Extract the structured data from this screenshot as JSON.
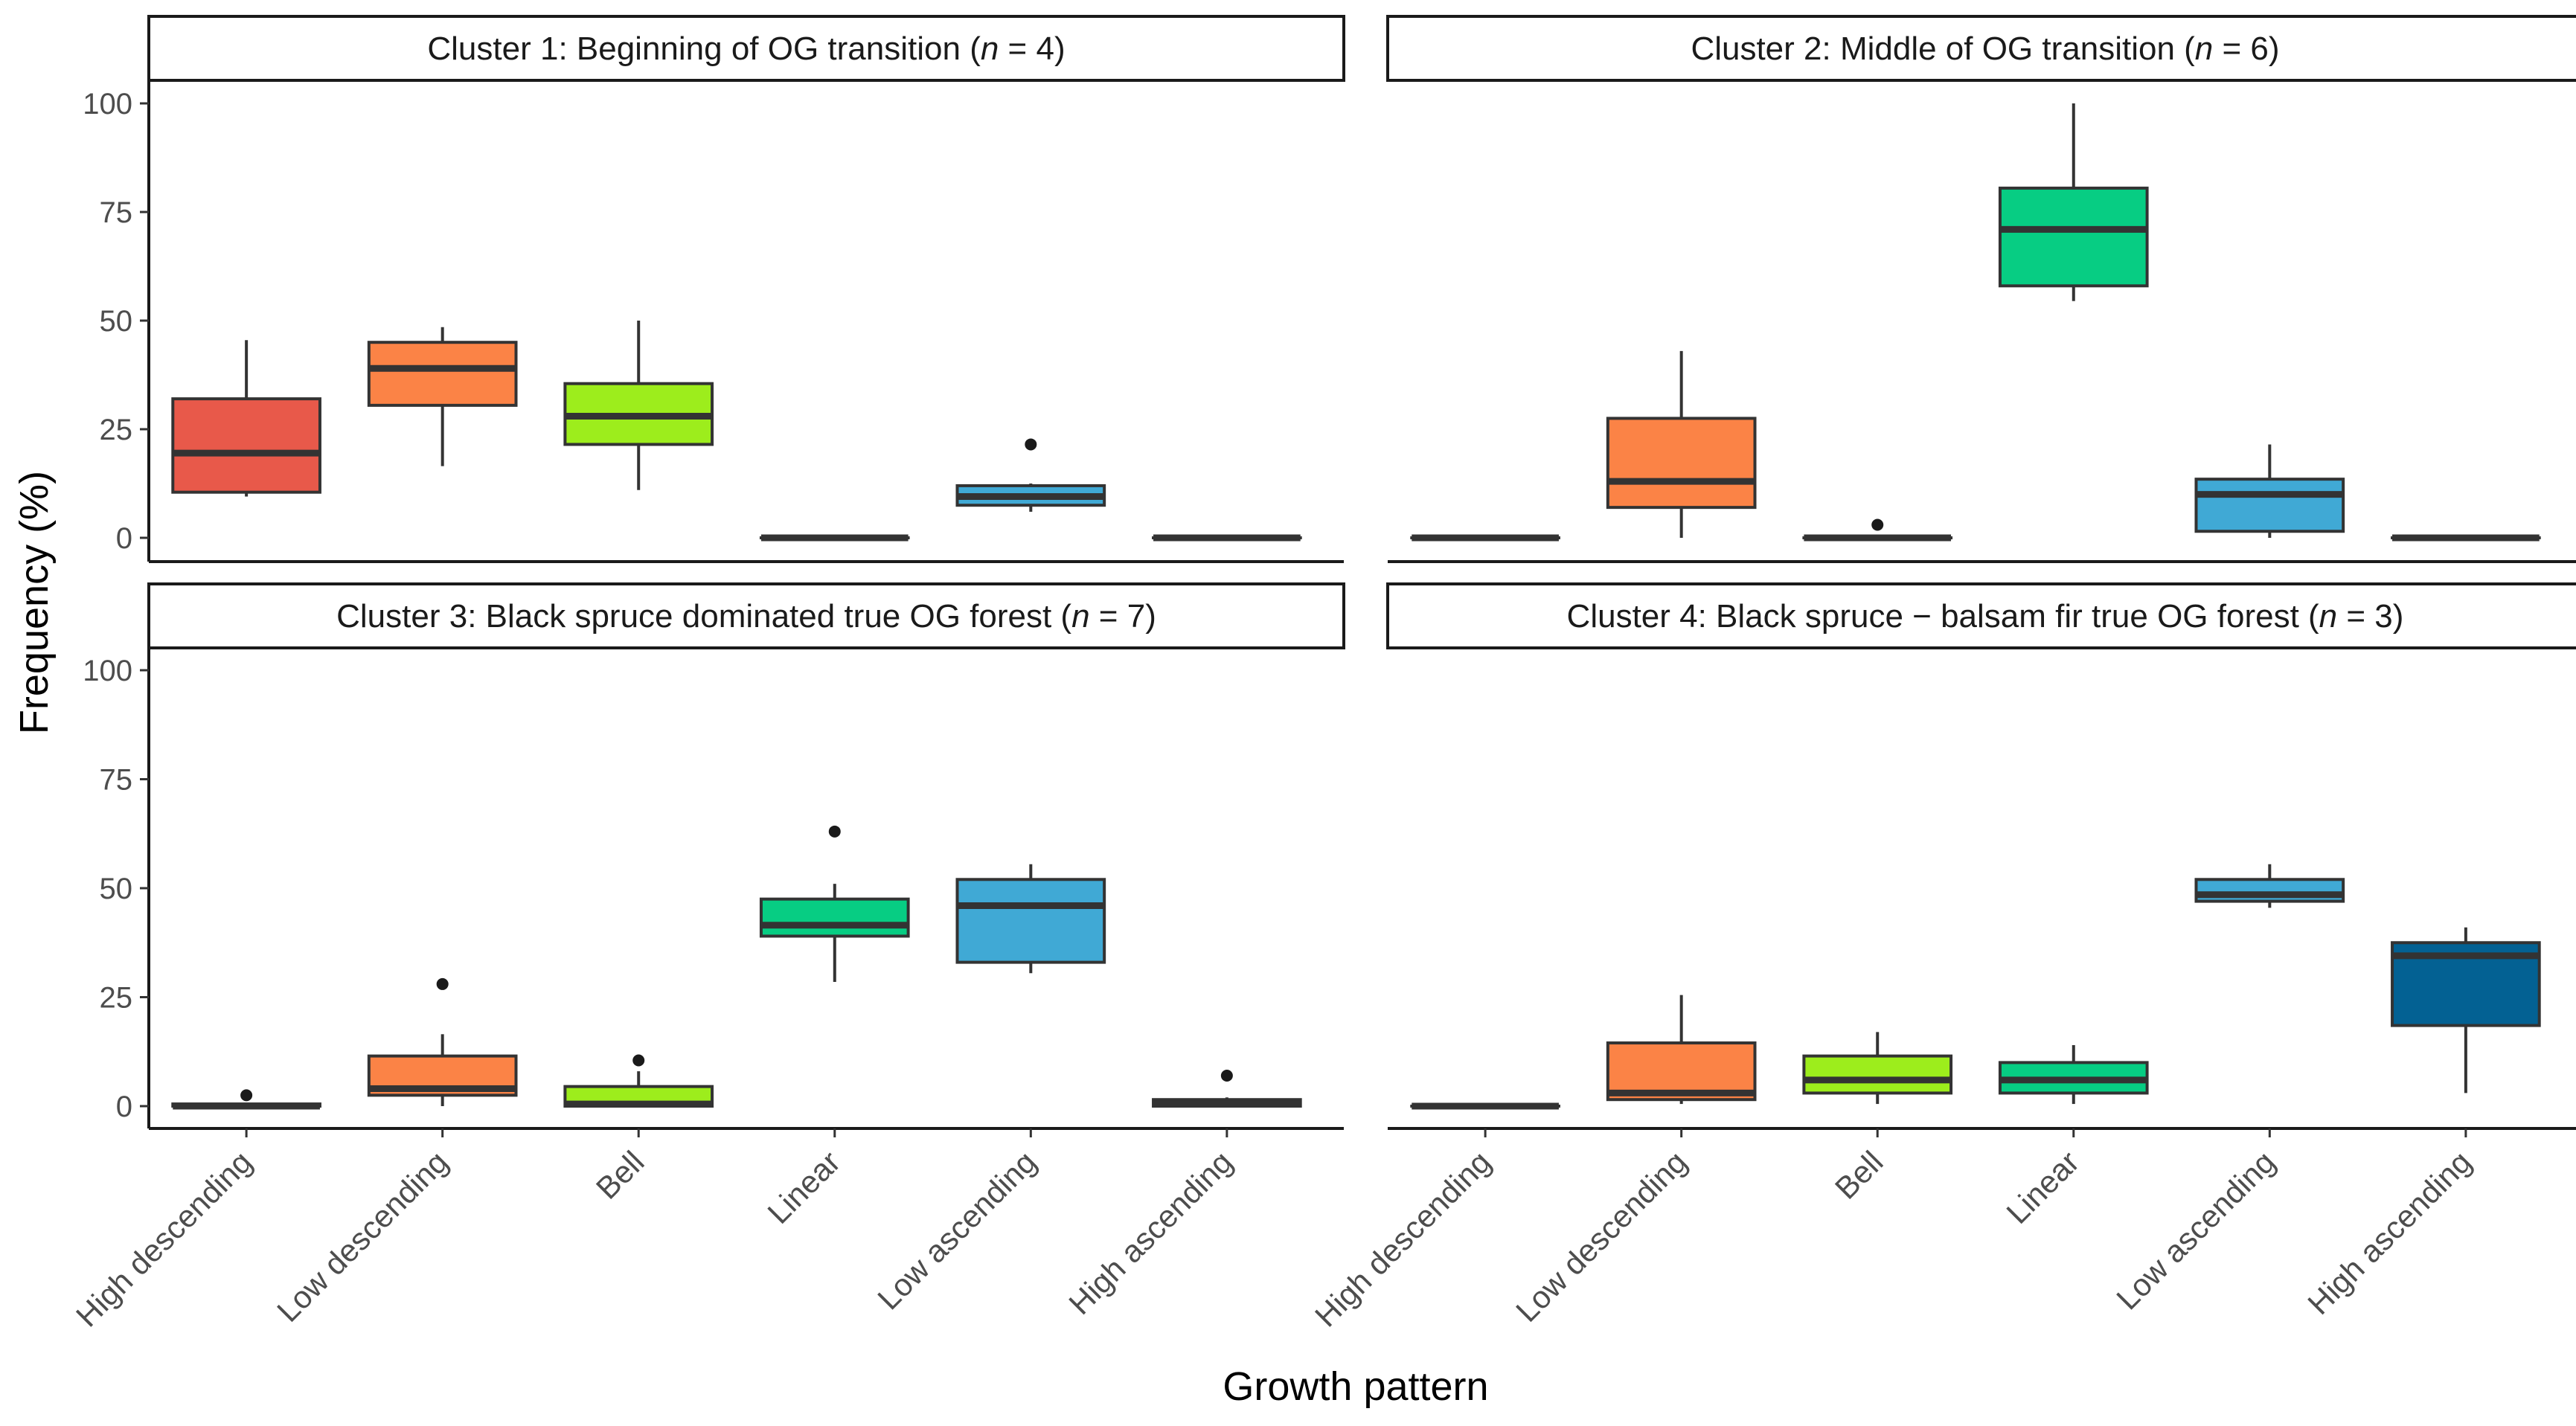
{
  "chart_data": {
    "type": "boxplot",
    "xlabel": "Growth pattern",
    "ylabel": "Frequency (%)",
    "ylim": [
      0,
      100
    ],
    "y_ticks": [
      0,
      25,
      50,
      75,
      100
    ],
    "categories": [
      "High descending",
      "Low descending",
      "Bell",
      "Linear",
      "Low ascending",
      "High ascending"
    ],
    "category_colors": [
      "#e8594a",
      "#fb8346",
      "#9ded1c",
      "#07cd83",
      "#40a9d5",
      "#036193"
    ],
    "panels": [
      {
        "strip_prefix": "Cluster 1: Beginning of OG transition (",
        "strip_italic": "n",
        "strip_suffix": " = 4)",
        "boxes": [
          {
            "min": 9.5,
            "q1": 10.5,
            "median": 19.5,
            "q3": 32,
            "max": 45.5,
            "outliers": []
          },
          {
            "min": 16.5,
            "q1": 30.5,
            "median": 39,
            "q3": 45,
            "max": 48.5,
            "outliers": []
          },
          {
            "min": 11,
            "q1": 21.5,
            "median": 28,
            "q3": 35.5,
            "max": 50,
            "outliers": []
          },
          {
            "min": 0,
            "q1": 0,
            "median": 0,
            "q3": 0,
            "max": 0,
            "outliers": []
          },
          {
            "min": 6,
            "q1": 7.5,
            "median": 9.5,
            "q3": 12,
            "max": 12.5,
            "outliers": [
              21.5
            ]
          },
          {
            "min": 0,
            "q1": 0,
            "median": 0,
            "q3": 0,
            "max": 0,
            "outliers": []
          }
        ]
      },
      {
        "strip_prefix": "Cluster 2: Middle of OG transition (",
        "strip_italic": "n",
        "strip_suffix": " = 6)",
        "boxes": [
          {
            "min": 0,
            "q1": 0,
            "median": 0,
            "q3": 0,
            "max": 0,
            "outliers": []
          },
          {
            "min": 0,
            "q1": 7,
            "median": 13,
            "q3": 27.5,
            "max": 43,
            "outliers": []
          },
          {
            "min": 0,
            "q1": 0,
            "median": 0,
            "q3": 0,
            "max": 0,
            "outliers": [
              3
            ]
          },
          {
            "min": 54.5,
            "q1": 58,
            "median": 71,
            "q3": 80.5,
            "max": 100,
            "outliers": []
          },
          {
            "min": 0,
            "q1": 1.5,
            "median": 10,
            "q3": 13.5,
            "max": 21.5,
            "outliers": []
          },
          {
            "min": 0,
            "q1": 0,
            "median": 0,
            "q3": 0,
            "max": 0,
            "outliers": []
          }
        ]
      },
      {
        "strip_prefix": "Cluster 3: Black spruce dominated true OG forest (",
        "strip_italic": "n",
        "strip_suffix": " = 7)",
        "boxes": [
          {
            "min": 0,
            "q1": 0,
            "median": 0,
            "q3": 0.5,
            "max": 0.5,
            "outliers": [
              2.5
            ]
          },
          {
            "min": 0,
            "q1": 2.5,
            "median": 4,
            "q3": 11.5,
            "max": 16.5,
            "outliers": [
              28
            ]
          },
          {
            "min": 0,
            "q1": 0,
            "median": 0.5,
            "q3": 4.5,
            "max": 8,
            "outliers": [
              10.5
            ]
          },
          {
            "min": 28.5,
            "q1": 39,
            "median": 41.5,
            "q3": 47.5,
            "max": 51,
            "outliers": [
              63
            ]
          },
          {
            "min": 30.5,
            "q1": 33,
            "median": 46,
            "q3": 52,
            "max": 55.5,
            "outliers": []
          },
          {
            "min": 0,
            "q1": 0,
            "median": 0.5,
            "q3": 1.5,
            "max": 2,
            "outliers": [
              7
            ]
          }
        ]
      },
      {
        "strip_prefix": "Cluster 4: Black spruce − balsam fir true OG forest (",
        "strip_italic": "n",
        "strip_suffix": " = 3)",
        "boxes": [
          {
            "min": 0,
            "q1": 0,
            "median": 0,
            "q3": 0,
            "max": 0,
            "outliers": []
          },
          {
            "min": 0.5,
            "q1": 1.5,
            "median": 3,
            "q3": 14.5,
            "max": 25.5,
            "outliers": []
          },
          {
            "min": 0.5,
            "q1": 3,
            "median": 6,
            "q3": 11.5,
            "max": 17,
            "outliers": []
          },
          {
            "min": 0.5,
            "q1": 3,
            "median": 6,
            "q3": 10,
            "max": 14,
            "outliers": []
          },
          {
            "min": 45.5,
            "q1": 47,
            "median": 48.5,
            "q3": 52,
            "max": 55.5,
            "outliers": []
          },
          {
            "min": 3,
            "q1": 18.5,
            "median": 34.5,
            "q3": 37.5,
            "max": 41,
            "outliers": []
          }
        ]
      }
    ]
  }
}
